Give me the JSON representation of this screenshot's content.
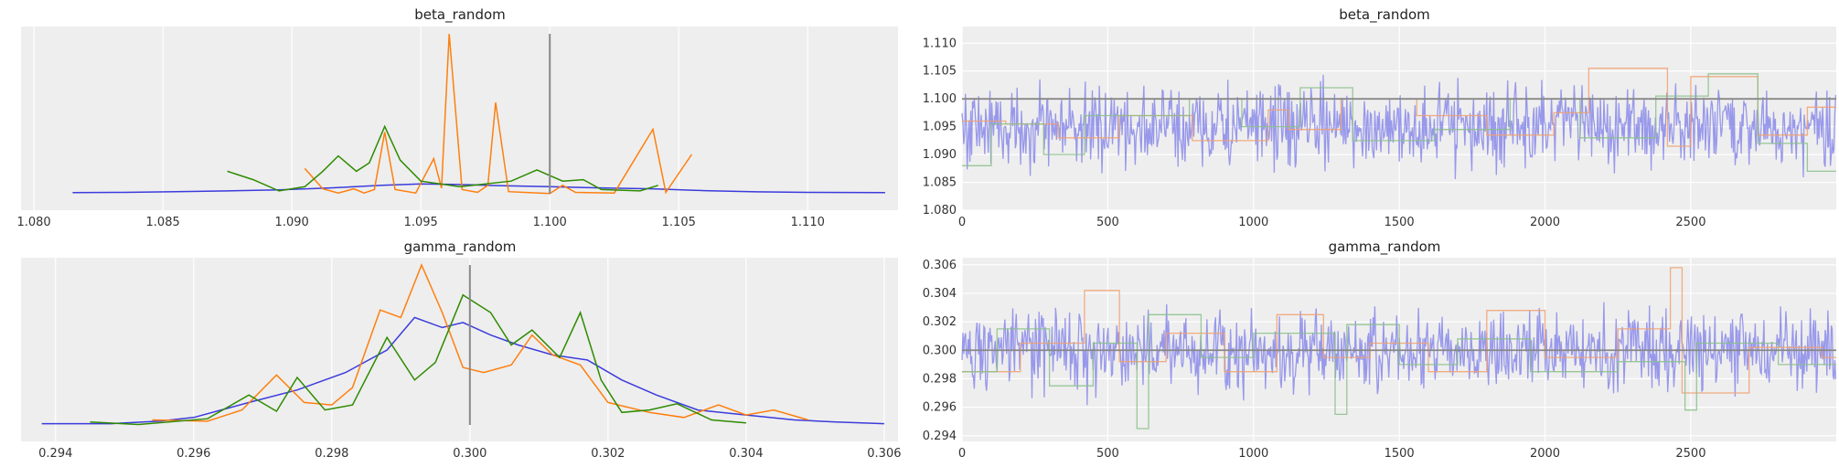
{
  "chart_data": [
    {
      "type": "line",
      "title": "beta_random",
      "kind": "kde",
      "xlim": [
        1.0795,
        1.1135
      ],
      "xticks": [
        "1.080",
        "1.085",
        "1.090",
        "1.095",
        "1.100",
        "1.105",
        "1.110"
      ],
      "reference_value": 1.1,
      "grid": "vertical",
      "series": [
        {
          "color": "#3b3bdc",
          "points": [
            [
              1.0815,
              0.08
            ],
            [
              1.0835,
              0.1
            ],
            [
              1.0855,
              0.15
            ],
            [
              1.0875,
              0.2
            ],
            [
              1.0895,
              0.28
            ],
            [
              1.0915,
              0.42
            ],
            [
              1.0935,
              0.6
            ],
            [
              1.095,
              0.7
            ],
            [
              1.0965,
              0.66
            ],
            [
              1.098,
              0.58
            ],
            [
              1.1,
              0.5
            ],
            [
              1.102,
              0.42
            ],
            [
              1.104,
              0.35
            ],
            [
              1.106,
              0.22
            ],
            [
              1.108,
              0.14
            ],
            [
              1.11,
              0.1
            ],
            [
              1.113,
              0.08
            ]
          ]
        },
        {
          "color": "#ff7f0e",
          "points": [
            [
              1.0905,
              1.8
            ],
            [
              1.0912,
              0.35
            ],
            [
              1.0918,
              0.05
            ],
            [
              1.0924,
              0.35
            ],
            [
              1.0928,
              0.05
            ],
            [
              1.0932,
              0.3
            ],
            [
              1.0936,
              4.4
            ],
            [
              1.094,
              0.3
            ],
            [
              1.0948,
              0.05
            ],
            [
              1.0955,
              2.5
            ],
            [
              1.0958,
              0.4
            ],
            [
              1.0961,
              11.4
            ],
            [
              1.0966,
              0.3
            ],
            [
              1.0972,
              0.1
            ],
            [
              1.0976,
              0.6
            ],
            [
              1.0979,
              6.5
            ],
            [
              1.0984,
              0.15
            ],
            [
              1.1,
              0.02
            ],
            [
              1.1005,
              0.6
            ],
            [
              1.101,
              0.1
            ],
            [
              1.1025,
              0.05
            ],
            [
              1.104,
              4.6
            ],
            [
              1.1045,
              0.1
            ],
            [
              1.1055,
              2.8
            ]
          ]
        },
        {
          "color": "#2e8b00",
          "points": [
            [
              1.0875,
              1.6
            ],
            [
              1.0885,
              1.0
            ],
            [
              1.0895,
              0.2
            ],
            [
              1.0905,
              0.5
            ],
            [
              1.0912,
              1.6
            ],
            [
              1.0918,
              2.7
            ],
            [
              1.0925,
              1.6
            ],
            [
              1.093,
              2.2
            ],
            [
              1.0936,
              4.8
            ],
            [
              1.0942,
              2.4
            ],
            [
              1.095,
              0.9
            ],
            [
              1.0965,
              0.5
            ],
            [
              1.0985,
              0.9
            ],
            [
              1.0995,
              1.7
            ],
            [
              1.1005,
              0.9
            ],
            [
              1.1013,
              1.0
            ],
            [
              1.102,
              0.3
            ],
            [
              1.1035,
              0.2
            ],
            [
              1.1042,
              0.6
            ]
          ]
        }
      ]
    },
    {
      "type": "line",
      "title": "beta_random",
      "kind": "trace",
      "xlim": [
        0,
        2999
      ],
      "ylim": [
        1.08,
        1.113
      ],
      "xticks": [
        "0",
        "500",
        "1000",
        "1500",
        "2000",
        "2500"
      ],
      "yticks": [
        "1.080",
        "1.085",
        "1.090",
        "1.095",
        "1.100",
        "1.105",
        "1.110"
      ],
      "reference_value": 1.1,
      "grid": "both",
      "series": [
        {
          "color": "#7b7bea",
          "kind": "noise",
          "center": 1.095,
          "spread": 0.0045,
          "min": 1.082,
          "max": 1.113
        },
        {
          "color": "#f0a070",
          "kind": "steps",
          "steps": [
            [
              0,
              1.096
            ],
            [
              150,
              1.0955
            ],
            [
              330,
              1.093
            ],
            [
              540,
              1.097
            ],
            [
              790,
              1.0925
            ],
            [
              1050,
              1.098
            ],
            [
              1120,
              1.0945
            ],
            [
              1300,
              1.1
            ],
            [
              1560,
              1.097
            ],
            [
              1800,
              1.0935
            ],
            [
              2030,
              1.0975
            ],
            [
              2150,
              1.1055
            ],
            [
              2420,
              1.0915
            ],
            [
              2500,
              1.104
            ],
            [
              2730,
              1.0935
            ],
            [
              2900,
              1.0985
            ]
          ]
        },
        {
          "color": "#88c088",
          "kind": "steps",
          "steps": [
            [
              0,
              1.088
            ],
            [
              100,
              1.0955
            ],
            [
              280,
              1.09
            ],
            [
              420,
              1.097
            ],
            [
              780,
              1.1
            ],
            [
              960,
              1.095
            ],
            [
              1160,
              1.102
            ],
            [
              1340,
              1.0925
            ],
            [
              1620,
              1.0945
            ],
            [
              1880,
              1.1
            ],
            [
              2120,
              1.093
            ],
            [
              2380,
              1.1005
            ],
            [
              2560,
              1.1045
            ],
            [
              2730,
              1.092
            ],
            [
              2900,
              1.087
            ]
          ]
        }
      ]
    },
    {
      "type": "line",
      "title": "gamma_random",
      "kind": "kde",
      "xlim": [
        0.2935,
        0.3062
      ],
      "xticks": [
        "0.294",
        "0.296",
        "0.298",
        "0.300",
        "0.302",
        "0.304",
        "0.306"
      ],
      "reference_value": 0.3,
      "grid": "vertical",
      "series": [
        {
          "color": "#3b3bdc",
          "points": [
            [
              0.2938,
              0.05
            ],
            [
              0.2948,
              0.05
            ],
            [
              0.2955,
              0.15
            ],
            [
              0.296,
              0.3
            ],
            [
              0.2968,
              0.9
            ],
            [
              0.2975,
              1.4
            ],
            [
              0.2982,
              2.1
            ],
            [
              0.2988,
              3.0
            ],
            [
              0.2992,
              4.3
            ],
            [
              0.2996,
              3.9
            ],
            [
              0.2999,
              4.1
            ],
            [
              0.3003,
              3.6
            ],
            [
              0.3007,
              3.2
            ],
            [
              0.3012,
              2.8
            ],
            [
              0.3017,
              2.6
            ],
            [
              0.3022,
              1.8
            ],
            [
              0.3027,
              1.2
            ],
            [
              0.3033,
              0.6
            ],
            [
              0.304,
              0.4
            ],
            [
              0.3047,
              0.2
            ],
            [
              0.3053,
              0.12
            ],
            [
              0.306,
              0.05
            ]
          ]
        },
        {
          "color": "#ff7f0e",
          "points": [
            [
              0.2954,
              0.2
            ],
            [
              0.2962,
              0.15
            ],
            [
              0.2967,
              0.6
            ],
            [
              0.2972,
              2.0
            ],
            [
              0.2976,
              0.9
            ],
            [
              0.298,
              0.8
            ],
            [
              0.2983,
              1.5
            ],
            [
              0.2987,
              4.6
            ],
            [
              0.299,
              4.3
            ],
            [
              0.2993,
              6.4
            ],
            [
              0.2996,
              4.5
            ],
            [
              0.2999,
              2.3
            ],
            [
              0.3002,
              2.1
            ],
            [
              0.3006,
              2.4
            ],
            [
              0.3009,
              3.6
            ],
            [
              0.3012,
              2.8
            ],
            [
              0.3016,
              2.4
            ],
            [
              0.302,
              0.9
            ],
            [
              0.3026,
              0.5
            ],
            [
              0.3031,
              0.3
            ],
            [
              0.3036,
              0.8
            ],
            [
              0.304,
              0.4
            ],
            [
              0.3044,
              0.6
            ],
            [
              0.3049,
              0.2
            ]
          ]
        },
        {
          "color": "#2e8b00",
          "points": [
            [
              0.2945,
              0.12
            ],
            [
              0.2952,
              0.02
            ],
            [
              0.2962,
              0.25
            ],
            [
              0.2968,
              1.2
            ],
            [
              0.2972,
              0.55
            ],
            [
              0.2975,
              1.9
            ],
            [
              0.2979,
              0.6
            ],
            [
              0.2983,
              0.8
            ],
            [
              0.2988,
              3.5
            ],
            [
              0.2992,
              1.8
            ],
            [
              0.2995,
              2.5
            ],
            [
              0.2999,
              5.2
            ],
            [
              0.3003,
              4.5
            ],
            [
              0.3006,
              3.2
            ],
            [
              0.3009,
              3.8
            ],
            [
              0.3013,
              2.7
            ],
            [
              0.3016,
              4.5
            ],
            [
              0.3019,
              1.8
            ],
            [
              0.3022,
              0.5
            ],
            [
              0.3026,
              0.6
            ],
            [
              0.303,
              0.85
            ],
            [
              0.3035,
              0.2
            ],
            [
              0.304,
              0.08
            ]
          ]
        }
      ]
    },
    {
      "type": "line",
      "title": "gamma_random",
      "kind": "trace",
      "xlim": [
        0,
        2999
      ],
      "ylim": [
        0.2936,
        0.3065
      ],
      "xticks": [
        "0",
        "500",
        "1000",
        "1500",
        "2000",
        "2500"
      ],
      "yticks": [
        "0.294",
        "0.296",
        "0.298",
        "0.300",
        "0.302",
        "0.304",
        "0.306"
      ],
      "reference_value": 0.3,
      "grid": "both",
      "series": [
        {
          "color": "#7b7bea",
          "kind": "noise",
          "center": 0.3,
          "spread": 0.0017,
          "min": 0.294,
          "max": 0.306
        },
        {
          "color": "#f0a070",
          "kind": "steps",
          "steps": [
            [
              0,
              0.2985
            ],
            [
              200,
              0.3005
            ],
            [
              420,
              0.3042
            ],
            [
              540,
              0.2992
            ],
            [
              700,
              0.3012
            ],
            [
              900,
              0.2985
            ],
            [
              1080,
              0.3025
            ],
            [
              1240,
              0.2995
            ],
            [
              1400,
              0.3005
            ],
            [
              1600,
              0.2985
            ],
            [
              1800,
              0.3028
            ],
            [
              2000,
              0.2995
            ],
            [
              2250,
              0.3015
            ],
            [
              2430,
              0.3058
            ],
            [
              2470,
              0.297
            ],
            [
              2700,
              0.3002
            ],
            [
              2950,
              0.2995
            ]
          ]
        },
        {
          "color": "#88c088",
          "kind": "steps",
          "steps": [
            [
              0,
              0.2985
            ],
            [
              120,
              0.3015
            ],
            [
              300,
              0.2975
            ],
            [
              450,
              0.3005
            ],
            [
              600,
              0.2945
            ],
            [
              640,
              0.3025
            ],
            [
              820,
              0.2995
            ],
            [
              1000,
              0.3012
            ],
            [
              1280,
              0.2955
            ],
            [
              1320,
              0.3018
            ],
            [
              1500,
              0.299
            ],
            [
              1700,
              0.3008
            ],
            [
              1950,
              0.2985
            ],
            [
              2250,
              0.2992
            ],
            [
              2480,
              0.2958
            ],
            [
              2520,
              0.3005
            ],
            [
              2800,
              0.299
            ]
          ]
        }
      ]
    }
  ]
}
